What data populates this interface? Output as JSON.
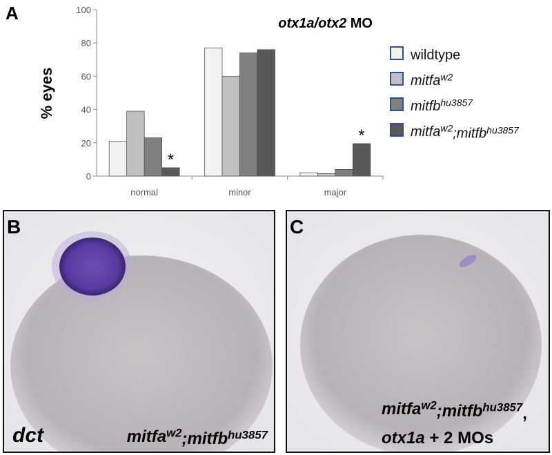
{
  "chart_data": {
    "type": "bar",
    "label": "A",
    "title": [
      {
        "text": "otx1a/otx2",
        "italic": true,
        "sup": false
      },
      {
        "text": " MO",
        "italic": false,
        "sup": false
      }
    ],
    "ylabel": "% eyes",
    "categories": [
      "normal",
      "minor",
      "major"
    ],
    "series": [
      {
        "name": [
          {
            "text": "wildtype",
            "italic": false,
            "sup": false
          }
        ],
        "color": "#f2f2f2",
        "values": [
          21,
          77,
          2
        ]
      },
      {
        "name": [
          {
            "text": "mitfa",
            "italic": true,
            "sup": false
          },
          {
            "text": "w2",
            "italic": true,
            "sup": true
          }
        ],
        "color": "#c0c0c0",
        "values": [
          39,
          60,
          1.5
        ]
      },
      {
        "name": [
          {
            "text": "mitfb",
            "italic": true,
            "sup": false
          },
          {
            "text": "hu3857",
            "italic": true,
            "sup": true
          }
        ],
        "color": "#808080",
        "values": [
          23,
          74,
          4
        ]
      },
      {
        "name": [
          {
            "text": "mitfa",
            "italic": true,
            "sup": false
          },
          {
            "text": "w2",
            "italic": true,
            "sup": true
          },
          {
            "text": ";mitfb",
            "italic": true,
            "sup": false
          },
          {
            "text": "hu3857",
            "italic": true,
            "sup": true
          }
        ],
        "color": "#595959",
        "values": [
          5,
          76,
          19.5
        ]
      }
    ],
    "annotations": [
      {
        "text": "*",
        "series": 3,
        "category": 0
      },
      {
        "text": "*",
        "series": 3,
        "category": 2
      }
    ],
    "ylim": [
      0,
      100
    ],
    "yticks": [
      0,
      20,
      40,
      60,
      80,
      100
    ],
    "grid": false,
    "legend": "right"
  },
  "panels": [
    {
      "label": "B",
      "texts": [
        [
          {
            "text": "dct",
            "italic": true,
            "sup": false
          }
        ],
        [
          {
            "text": "mitfa",
            "italic": true,
            "sup": false
          },
          {
            "text": "w2",
            "italic": true,
            "sup": true
          },
          {
            "text": ";mitfb",
            "italic": true,
            "sup": false
          },
          {
            "text": "hu3857",
            "italic": true,
            "sup": true
          }
        ]
      ]
    },
    {
      "label": "C",
      "texts": [
        [
          {
            "text": "mitfa",
            "italic": true,
            "sup": false
          },
          {
            "text": "w2",
            "italic": true,
            "sup": true
          },
          {
            "text": ";mitfb",
            "italic": true,
            "sup": false
          },
          {
            "text": "hu3857",
            "italic": true,
            "sup": true
          },
          {
            "text": ",",
            "italic": false,
            "sup": false
          }
        ],
        [
          {
            "text": "otx1a",
            "italic": true,
            "sup": false
          },
          {
            "text": " + 2 MOs",
            "italic": false,
            "sup": false
          }
        ]
      ]
    }
  ]
}
